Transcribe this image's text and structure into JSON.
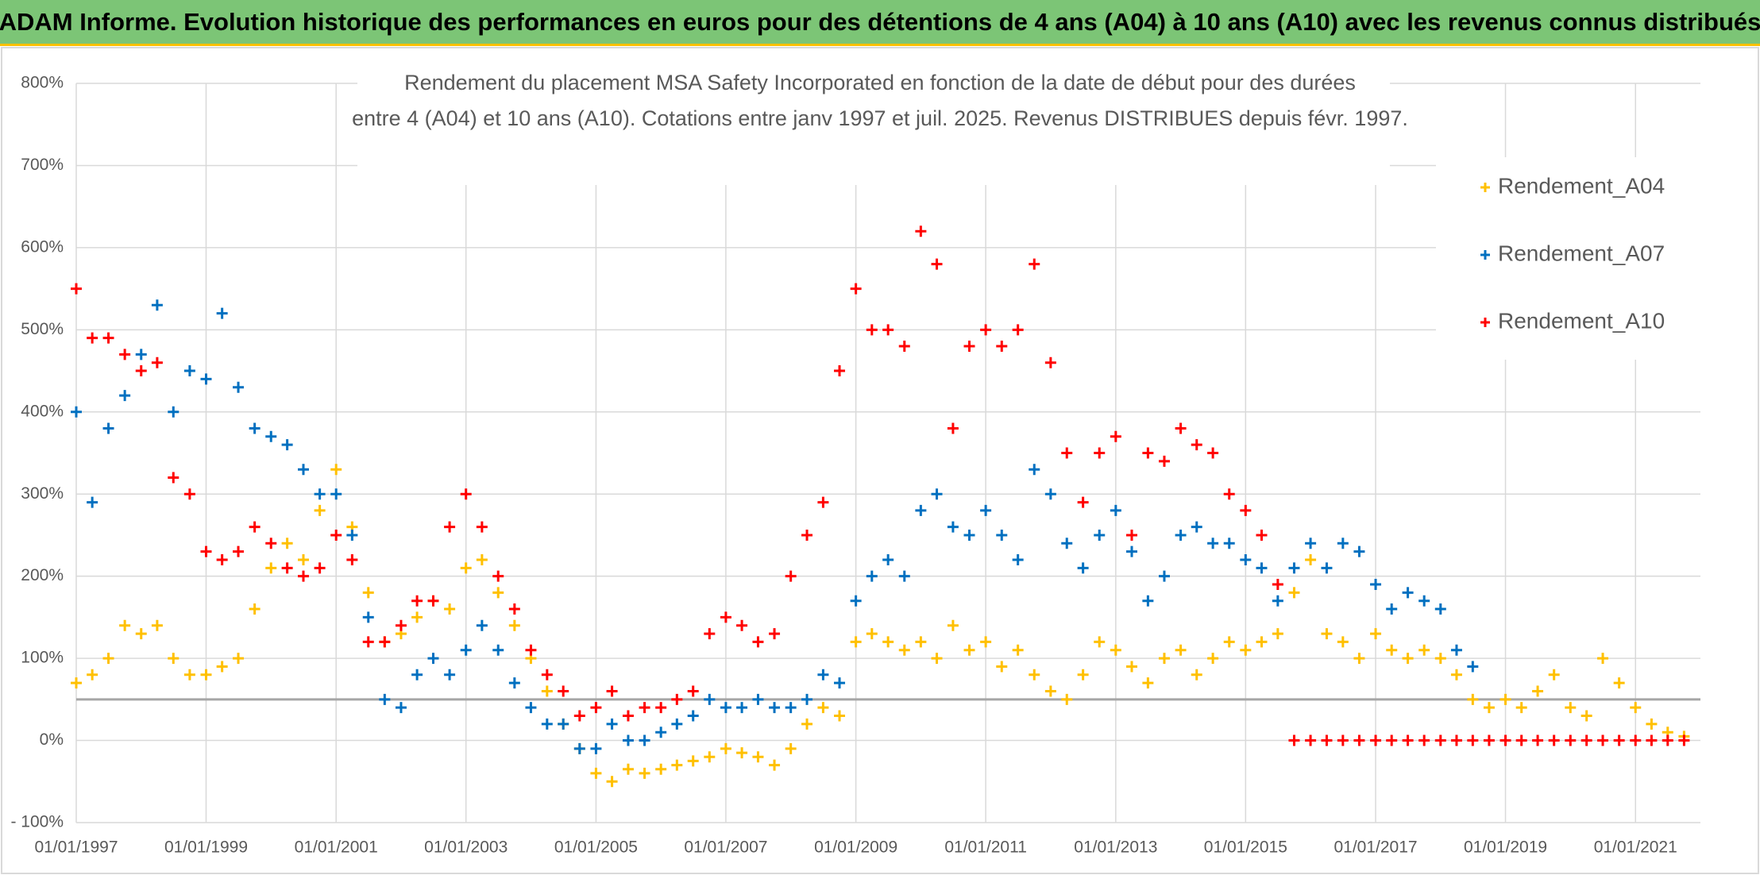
{
  "header": {
    "title": "ADAM Informe. Evolution historique des performances en euros pour des détentions de 4 ans (A04) à 10 ans (A10) avec les revenus connus distribués"
  },
  "chart_data": {
    "type": "scatter",
    "title_lines": [
      "Rendement du placement MSA Safety Incorporated en fonction de la date de début pour des durées",
      "entre 4 (A04) et 10 ans (A10). Cotations entre janv 1997 et juil. 2025. Revenus DISTRIBUES depuis févr. 1997."
    ],
    "x": [
      "01/01/1997",
      "01/04/1997",
      "01/07/1997",
      "01/10/1997",
      "01/01/1998",
      "01/04/1998",
      "01/07/1998",
      "01/10/1998",
      "01/01/1999",
      "01/04/1999",
      "01/07/1999",
      "01/10/1999",
      "01/01/2000",
      "01/04/2000",
      "01/07/2000",
      "01/10/2000",
      "01/01/2001",
      "01/04/2001",
      "01/07/2001",
      "01/10/2001",
      "01/01/2002",
      "01/04/2002",
      "01/07/2002",
      "01/10/2002",
      "01/01/2003",
      "01/04/2003",
      "01/07/2003",
      "01/10/2003",
      "01/01/2004",
      "01/04/2004",
      "01/07/2004",
      "01/10/2004",
      "01/01/2005",
      "01/04/2005",
      "01/07/2005",
      "01/10/2005",
      "01/01/2006",
      "01/04/2006",
      "01/07/2006",
      "01/10/2006",
      "01/01/2007",
      "01/04/2007",
      "01/07/2007",
      "01/10/2007",
      "01/01/2008",
      "01/04/2008",
      "01/07/2008",
      "01/10/2008",
      "01/01/2009",
      "01/04/2009",
      "01/07/2009",
      "01/10/2009",
      "01/01/2010",
      "01/04/2010",
      "01/07/2010",
      "01/10/2010",
      "01/01/2011",
      "01/04/2011",
      "01/07/2011",
      "01/10/2011",
      "01/01/2012",
      "01/04/2012",
      "01/07/2012",
      "01/10/2012",
      "01/01/2013",
      "01/04/2013",
      "01/07/2013",
      "01/10/2013",
      "01/01/2014",
      "01/04/2014",
      "01/07/2014",
      "01/10/2014",
      "01/01/2015",
      "01/04/2015",
      "01/07/2015",
      "01/10/2015",
      "01/01/2016",
      "01/04/2016",
      "01/07/2016",
      "01/10/2016",
      "01/01/2017",
      "01/04/2017",
      "01/07/2017",
      "01/10/2017",
      "01/01/2018",
      "01/04/2018",
      "01/07/2018",
      "01/10/2018",
      "01/01/2019",
      "01/04/2019",
      "01/07/2019",
      "01/10/2019",
      "01/01/2020",
      "01/04/2020",
      "01/07/2020",
      "01/10/2020",
      "01/01/2021",
      "01/04/2021",
      "01/07/2021",
      "01/10/2021"
    ],
    "series": [
      {
        "name": "Rendement_A04",
        "color": "#ffc000",
        "values": [
          70,
          80,
          100,
          140,
          130,
          140,
          100,
          80,
          80,
          90,
          100,
          160,
          210,
          240,
          220,
          280,
          330,
          260,
          180,
          120,
          130,
          150,
          170,
          160,
          210,
          220,
          180,
          140,
          100,
          60,
          20,
          -10,
          -40,
          -50,
          -35,
          -40,
          -35,
          -30,
          -25,
          -20,
          -10,
          -15,
          -20,
          -30,
          -10,
          20,
          40,
          30,
          120,
          130,
          120,
          110,
          120,
          100,
          140,
          110,
          120,
          90,
          110,
          80,
          60,
          50,
          80,
          120,
          110,
          90,
          70,
          100,
          110,
          80,
          100,
          120,
          110,
          120,
          130,
          180,
          220,
          130,
          120,
          100,
          130,
          110,
          100,
          110,
          100,
          80,
          50,
          40,
          50,
          40,
          60,
          80,
          40,
          30,
          100,
          70,
          40,
          20,
          10,
          5
        ]
      },
      {
        "name": "Rendement_A07",
        "color": "#0070c0",
        "values": [
          400,
          290,
          380,
          420,
          470,
          530,
          400,
          450,
          440,
          520,
          430,
          380,
          370,
          360,
          330,
          300,
          300,
          250,
          150,
          50,
          40,
          80,
          100,
          80,
          110,
          140,
          110,
          70,
          40,
          20,
          20,
          -10,
          -10,
          20,
          0,
          0,
          10,
          20,
          30,
          50,
          40,
          40,
          50,
          40,
          40,
          50,
          80,
          70,
          170,
          200,
          220,
          200,
          280,
          300,
          260,
          250,
          280,
          250,
          220,
          330,
          300,
          240,
          210,
          250,
          280,
          230,
          170,
          200,
          250,
          260,
          240,
          240,
          220,
          210,
          170,
          210,
          240,
          210,
          240,
          230,
          190,
          160,
          180,
          170,
          160,
          110,
          90,
          null,
          null,
          null,
          null,
          null,
          null,
          null,
          null,
          null,
          null,
          null,
          null,
          null
        ]
      },
      {
        "name": "Rendement_A10",
        "color": "#ff0000",
        "values": [
          550,
          490,
          490,
          470,
          450,
          460,
          320,
          300,
          230,
          220,
          230,
          260,
          240,
          210,
          200,
          210,
          250,
          220,
          120,
          120,
          140,
          170,
          170,
          260,
          300,
          260,
          200,
          160,
          110,
          80,
          60,
          30,
          40,
          60,
          30,
          40,
          40,
          50,
          60,
          130,
          150,
          140,
          120,
          130,
          200,
          250,
          290,
          450,
          550,
          500,
          500,
          480,
          620,
          580,
          380,
          480,
          500,
          480,
          500,
          580,
          460,
          350,
          290,
          350,
          370,
          250,
          350,
          340,
          380,
          360,
          350,
          300,
          280,
          250,
          190,
          0,
          0,
          0,
          0,
          0,
          0,
          0,
          0,
          0,
          0,
          0,
          0,
          0,
          0,
          0,
          0,
          0,
          0,
          0,
          0,
          0,
          0,
          0,
          0,
          0
        ]
      }
    ],
    "xlim": [
      "01/01/1997",
      "01/01/2022"
    ],
    "xticks": [
      "01/01/1997",
      "01/01/1999",
      "01/01/2001",
      "01/01/2003",
      "01/01/2005",
      "01/01/2007",
      "01/01/2009",
      "01/01/2011",
      "01/01/2013",
      "01/01/2015",
      "01/01/2017",
      "01/01/2019",
      "01/01/2021"
    ],
    "ylim": [
      -100,
      800
    ],
    "yticks": [
      {
        "value": -100,
        "label": "- 100%"
      },
      {
        "value": 0,
        "label": "0%"
      },
      {
        "value": 100,
        "label": "100%"
      },
      {
        "value": 200,
        "label": "200%"
      },
      {
        "value": 300,
        "label": "300%"
      },
      {
        "value": 400,
        "label": "400%"
      },
      {
        "value": 500,
        "label": "500%"
      },
      {
        "value": 600,
        "label": "600%"
      },
      {
        "value": 700,
        "label": "700%"
      },
      {
        "value": 800,
        "label": "800%"
      }
    ],
    "reference_line": 50,
    "grid": true,
    "legend": "upper right"
  }
}
